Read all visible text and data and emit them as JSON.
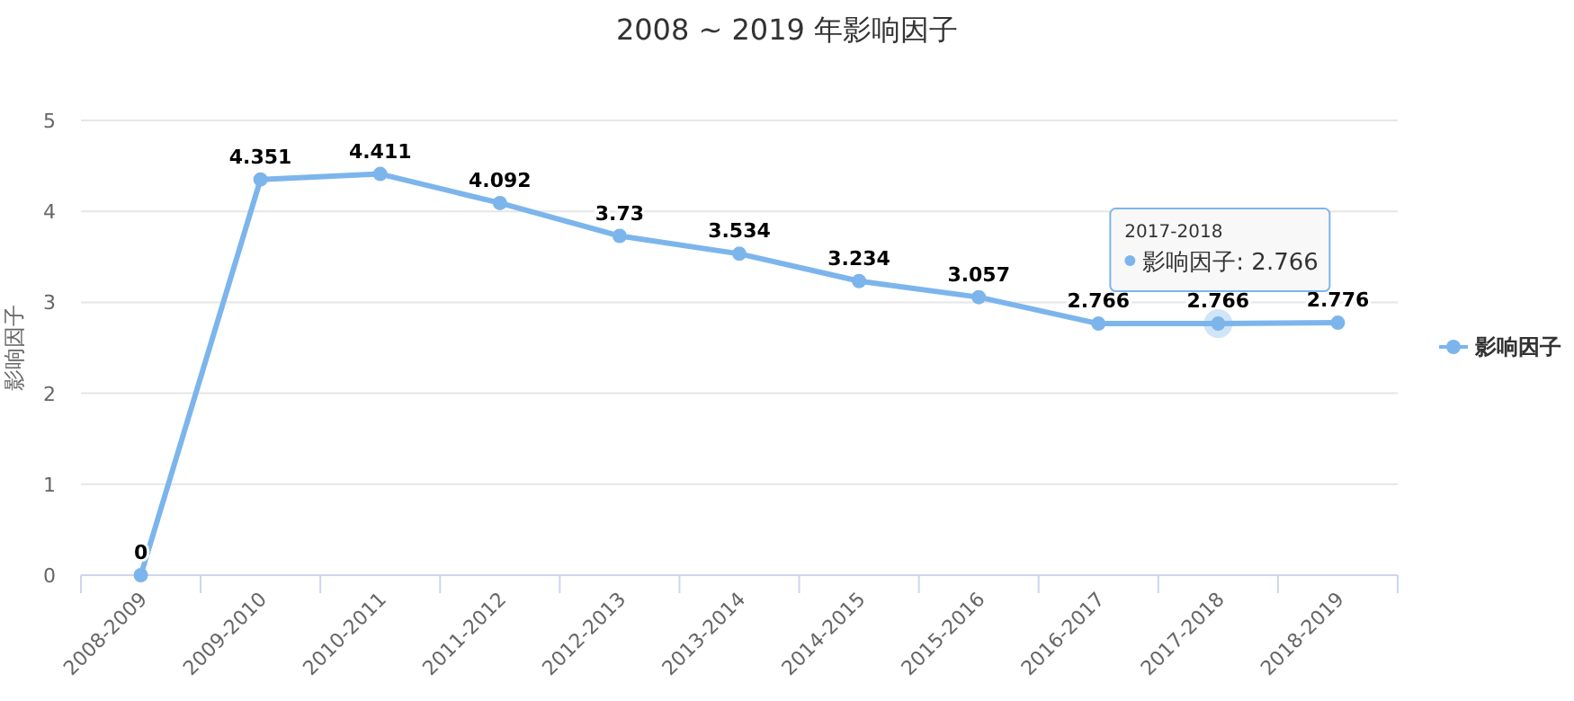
{
  "chart_data": {
    "type": "line",
    "title": "2008 ~ 2019 年影响因子",
    "ylabel": "影响因子",
    "categories": [
      "2008-2009",
      "2009-2010",
      "2010-2011",
      "2011-2012",
      "2012-2013",
      "2013-2014",
      "2014-2015",
      "2015-2016",
      "2016-2017",
      "2017-2018",
      "2018-2019"
    ],
    "series": [
      {
        "name": "影响因子",
        "color": "#7cb5ec",
        "values": [
          0,
          4.351,
          4.411,
          4.092,
          3.73,
          3.534,
          3.234,
          3.057,
          2.766,
          2.766,
          2.776
        ]
      }
    ],
    "ylim": [
      0,
      5
    ],
    "yticks": [
      0,
      1,
      2,
      3,
      4,
      5
    ],
    "grid": "y",
    "legend": "right",
    "marker": "circle",
    "data_labels": true,
    "annotations": [
      {
        "text": "2017-2018\n影响因子: 2.766",
        "x": "2017-2018",
        "y": 2.766
      }
    ]
  }
}
